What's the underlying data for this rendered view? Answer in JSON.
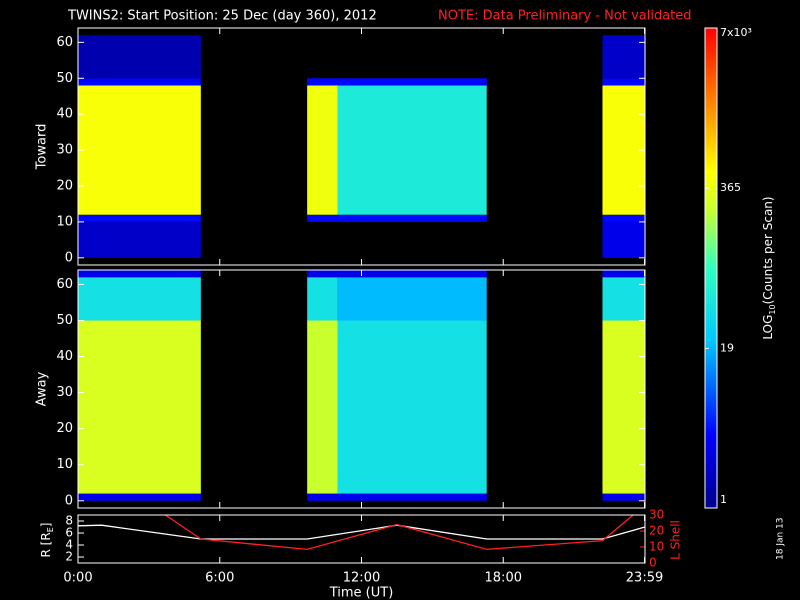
{
  "title": "TWINS2: Start Position: 25 Dec (day 360), 2012",
  "note": "NOTE: Data Preliminary - Not validated",
  "footer": "18 Jan 13",
  "colorbar": {
    "lim": [
      1,
      7000
    ],
    "ticks": [
      1,
      19,
      365,
      {
        "value": 7000,
        "label": "7x10³"
      }
    ],
    "label": [
      "LOG",
      "10",
      "(Counts per Scan)"
    ]
  },
  "chart_data": [
    {
      "type": "heatmap",
      "ylabel": "Toward",
      "xlim": [
        0,
        24
      ],
      "ylim": [
        -2,
        64
      ],
      "yticks": [
        0,
        10,
        20,
        30,
        40,
        50,
        60
      ],
      "xbins": [
        0,
        5.2,
        9.7,
        11,
        17.3,
        22.2,
        24
      ],
      "ybins": [
        0,
        10,
        12,
        48,
        50,
        62
      ],
      "values": [
        [
          2,
          null,
          null,
          null,
          null,
          3
        ],
        [
          4,
          null,
          4,
          4,
          null,
          4
        ],
        [
          450,
          null,
          400,
          50,
          null,
          450
        ],
        [
          4,
          null,
          4,
          4,
          null,
          4
        ],
        [
          1.5,
          null,
          null,
          null,
          null,
          2
        ]
      ]
    },
    {
      "type": "heatmap",
      "ylabel": "Away",
      "xlim": [
        0,
        24
      ],
      "ylim": [
        -2,
        64
      ],
      "yticks": [
        0,
        10,
        20,
        30,
        40,
        50,
        60
      ],
      "xbins": [
        0,
        5.2,
        9.7,
        11,
        17.3,
        22.2,
        24
      ],
      "ybins": [
        0,
        2,
        50,
        62,
        64
      ],
      "values": [
        [
          3,
          null,
          3,
          3,
          null,
          3
        ],
        [
          300,
          null,
          250,
          40,
          null,
          300
        ],
        [
          40,
          null,
          40,
          20,
          null,
          40
        ],
        [
          3,
          null,
          3,
          3,
          null,
          3
        ]
      ]
    },
    {
      "type": "line",
      "xlabel": "Time (UT)",
      "ylabel": [
        "R [R",
        "E",
        "]"
      ],
      "y2label": "L Shell",
      "xlim": [
        0,
        24
      ],
      "ylim": [
        1,
        9
      ],
      "yticks": [
        2,
        4,
        6,
        8
      ],
      "y2lim": [
        0,
        30
      ],
      "y2ticks": [
        0,
        10,
        20,
        30
      ],
      "xticks": [
        {
          "value": 0,
          "label": "0:00"
        },
        {
          "value": 6,
          "label": "6:00"
        },
        {
          "value": 12,
          "label": "12:00"
        },
        {
          "value": 18,
          "label": "18:00"
        },
        {
          "value": 23.98,
          "label": "23:59"
        }
      ],
      "series": [
        {
          "color": "#ffffff",
          "x": [
            0,
            1,
            5.2,
            9.7,
            13.5,
            17.3,
            22.2,
            24
          ],
          "values": [
            7.2,
            7.3,
            5,
            5,
            7.3,
            5,
            5,
            7
          ]
        },
        {
          "color": "#ff2020",
          "axis": "y2",
          "x": [
            3.7,
            5.2,
            9.7,
            13.5,
            17.3,
            22.2,
            23.5
          ],
          "values": [
            30,
            15,
            8.5,
            24,
            8.5,
            14,
            30
          ]
        }
      ]
    }
  ]
}
